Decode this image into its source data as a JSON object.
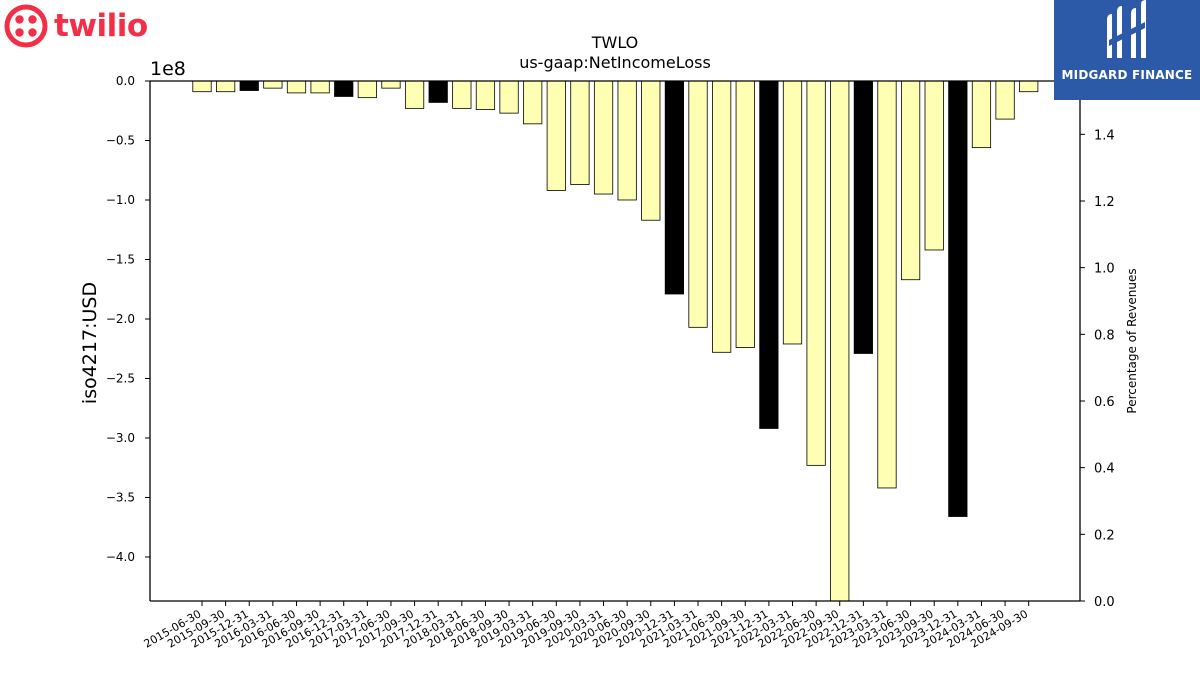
{
  "logos": {
    "left_brand": "twilio",
    "left_brand_color": "#f22f46",
    "right_brand": "MIDGARD FINANCE",
    "right_brand_bg": "#2c5aa8"
  },
  "chart_data": {
    "type": "bar",
    "title": "TWLO",
    "subtitle": "us-gaap:NetIncomeLoss",
    "ylabel": "iso4217:USD",
    "y2label": "Percentage of Revenues",
    "offset_label": "1e8",
    "ylim": [
      -4.37,
      0
    ],
    "y_ticks": [
      0.0,
      -0.5,
      -1.0,
      -1.5,
      -2.0,
      -2.5,
      -3.0,
      -3.5,
      -4.0
    ],
    "y_tick_labels": [
      "0.0",
      "−0.5",
      "−1.0",
      "−1.5",
      "−2.0",
      "−2.5",
      "−3.0",
      "−3.5",
      "−4.0"
    ],
    "y2lim": [
      0,
      1.56
    ],
    "y2_ticks": [
      0.0,
      0.2,
      0.4,
      0.6,
      0.8,
      1.0,
      1.2,
      1.4
    ],
    "y2_tick_labels": [
      "0.0",
      "0.2",
      "0.4",
      "0.6",
      "0.8",
      "1.0",
      "1.2",
      "1.4"
    ],
    "grid": false,
    "colors": {
      "quarterly": "#ffffb3",
      "annual": "#000000",
      "edge": "#000000"
    },
    "categories": [
      "2015-06-30",
      "2015-09-30",
      "2015-12-31",
      "2016-03-31",
      "2016-06-30",
      "2016-09-30",
      "2016-12-31",
      "2017-03-31",
      "2017-06-30",
      "2017-09-30",
      "2017-12-31",
      "2018-03-31",
      "2018-06-30",
      "2018-09-30",
      "2019-03-31",
      "2019-06-30",
      "2019-09-30",
      "2020-03-31",
      "2020-06-30",
      "2020-09-30",
      "2020-12-31",
      "2021-03-31",
      "2021-06-30",
      "2021-09-30",
      "2021-12-31",
      "2022-03-31",
      "2022-06-30",
      "2022-09-30",
      "2022-12-31",
      "2023-03-31",
      "2023-06-30",
      "2023-09-30",
      "2023-12-31",
      "2024-03-31",
      "2024-06-30",
      "2024-09-30"
    ],
    "values": [
      -0.09,
      -0.09,
      -0.08,
      -0.06,
      -0.1,
      -0.1,
      -0.13,
      -0.14,
      -0.06,
      -0.23,
      -0.18,
      -0.23,
      -0.24,
      -0.27,
      -0.36,
      -0.92,
      -0.87,
      -0.95,
      -1.0,
      -1.17,
      -1.79,
      -2.07,
      -2.28,
      -2.24,
      -2.92,
      -2.21,
      -3.23,
      -4.37,
      -2.29,
      -3.42,
      -1.67,
      -1.42,
      -3.66,
      -0.56,
      -0.32,
      -0.09
    ],
    "annual_flags": [
      false,
      false,
      true,
      false,
      false,
      false,
      true,
      false,
      false,
      false,
      true,
      false,
      false,
      false,
      false,
      false,
      false,
      false,
      false,
      false,
      true,
      false,
      false,
      false,
      true,
      false,
      false,
      false,
      true,
      false,
      false,
      false,
      true,
      false,
      false,
      false
    ]
  }
}
